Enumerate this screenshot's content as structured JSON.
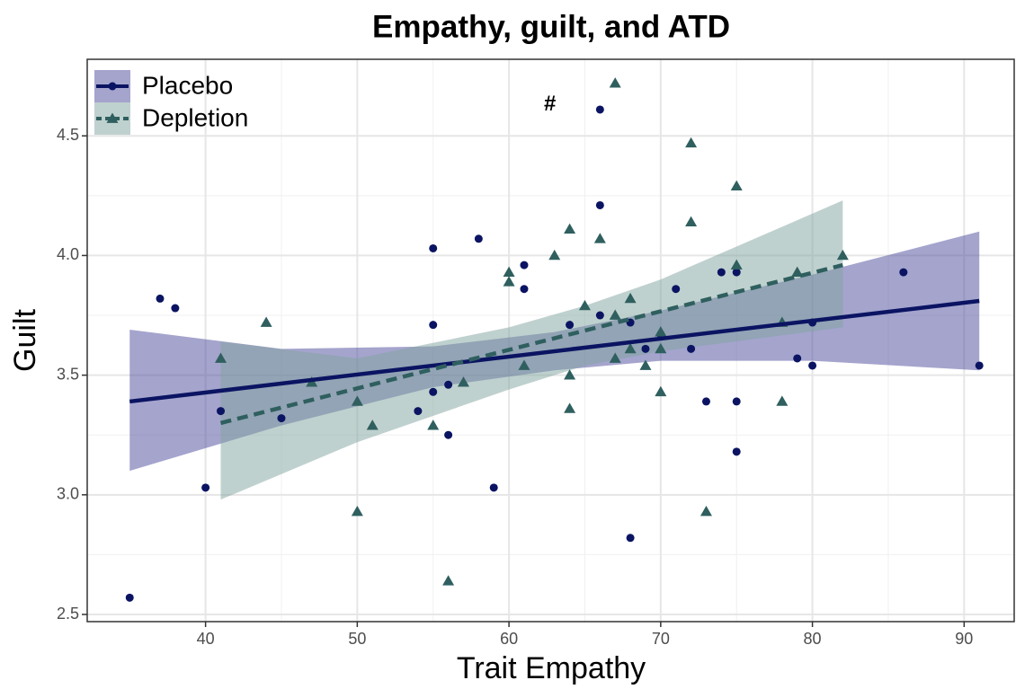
{
  "chart_data": {
    "type": "scatter",
    "title": "Empathy, guilt, and ATD",
    "x_label": "Trait Empathy",
    "y_label": "Guilt",
    "annotation": "#",
    "annotation_x": 62.7,
    "annotation_y": 4.63,
    "xlim": [
      32.2,
      93.3
    ],
    "ylim": [
      2.47,
      4.82
    ],
    "xticks": [
      40,
      50,
      60,
      70,
      80,
      90
    ],
    "yticks": [
      2.5,
      {
        "value": 3,
        "label": "3.0"
      },
      3.5,
      {
        "value": 4,
        "label": "4.0"
      },
      4.5
    ],
    "grid": true,
    "legend": "top-left",
    "series": [
      {
        "name": "Placebo",
        "color": "#0b1462",
        "marker": "circle",
        "linestyle": "solid",
        "band_color": "#4a4a9c",
        "x": [
          35,
          37,
          38,
          40,
          41,
          45,
          54,
          55,
          55,
          55,
          56,
          56,
          58,
          59,
          61,
          61,
          64,
          66,
          66,
          66,
          68,
          68,
          69,
          70,
          71,
          72,
          73,
          74,
          75,
          75,
          75,
          79,
          80,
          80,
          86,
          91
        ],
        "y": [
          2.57,
          3.82,
          3.78,
          3.03,
          3.35,
          3.32,
          3.35,
          4.03,
          3.71,
          3.43,
          3.46,
          3.25,
          4.07,
          3.03,
          3.96,
          3.86,
          3.71,
          4.61,
          4.21,
          3.75,
          3.72,
          2.82,
          3.61,
          3.67,
          3.86,
          3.61,
          3.39,
          3.93,
          3.93,
          3.39,
          3.18,
          3.57,
          3.72,
          3.54,
          3.93,
          3.54
        ],
        "fit": {
          "x": [
            35,
            91
          ],
          "y": [
            3.39,
            3.81
          ]
        },
        "band": {
          "x": [
            35,
            45,
            55,
            63,
            70,
            80,
            91
          ],
          "lower": [
            3.1,
            3.29,
            3.45,
            3.52,
            3.56,
            3.56,
            3.52
          ],
          "upper": [
            3.69,
            3.61,
            3.62,
            3.68,
            3.77,
            3.92,
            4.1
          ]
        }
      },
      {
        "name": "Depletion",
        "color": "#2f5f5f",
        "marker": "triangle",
        "linestyle": "dashed",
        "band_color": "#7fa39e",
        "x": [
          41,
          44,
          47,
          50,
          50,
          51,
          55,
          56,
          57,
          60,
          60,
          61,
          63,
          64,
          64,
          64,
          65,
          66,
          67,
          67,
          67,
          68,
          68,
          69,
          70,
          70,
          70,
          72,
          72,
          73,
          75,
          75,
          78,
          78,
          79,
          82
        ],
        "y": [
          3.57,
          3.72,
          3.47,
          3.39,
          2.93,
          3.29,
          3.29,
          2.64,
          3.47,
          3.93,
          3.89,
          3.54,
          4.0,
          4.11,
          3.5,
          3.36,
          3.79,
          4.07,
          4.72,
          3.75,
          3.57,
          3.82,
          3.61,
          3.54,
          3.68,
          3.61,
          3.43,
          4.47,
          4.14,
          2.93,
          4.29,
          3.96,
          3.72,
          3.39,
          3.93,
          4.0
        ],
        "fit": {
          "x": [
            41,
            82
          ],
          "y": [
            3.3,
            3.96
          ]
        },
        "band": {
          "x": [
            41,
            50,
            60,
            65,
            70,
            82
          ],
          "lower": [
            2.98,
            3.22,
            3.44,
            3.54,
            3.6,
            3.7
          ],
          "upper": [
            3.64,
            3.57,
            3.7,
            3.79,
            3.9,
            4.23
          ]
        }
      }
    ]
  }
}
